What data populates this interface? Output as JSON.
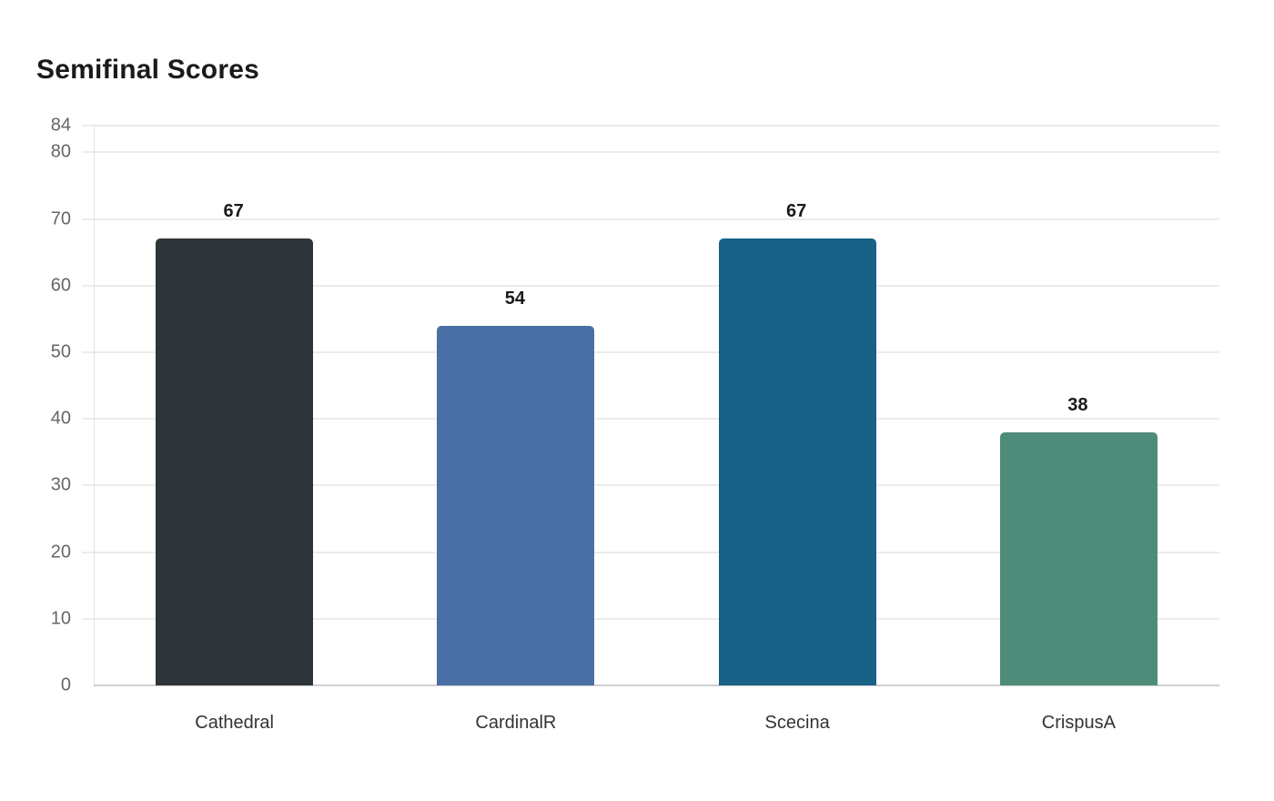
{
  "title": "Semifinal Scores",
  "chart_data": {
    "type": "bar",
    "title": "Semifinal Scores",
    "xlabel": "",
    "ylabel": "",
    "categories": [
      "Cathedral",
      "CardinalR",
      "Scecina",
      "CrispusA"
    ],
    "values": [
      67,
      54,
      67,
      38
    ],
    "colors": [
      "#2d3538",
      "#4a6fa5",
      "#186187",
      "#4e8c7a"
    ],
    "ylim": [
      0,
      84
    ],
    "yticks": [
      0,
      10,
      20,
      30,
      40,
      50,
      60,
      70,
      80,
      84
    ],
    "grid": true,
    "legend": null,
    "data_labels": true
  }
}
